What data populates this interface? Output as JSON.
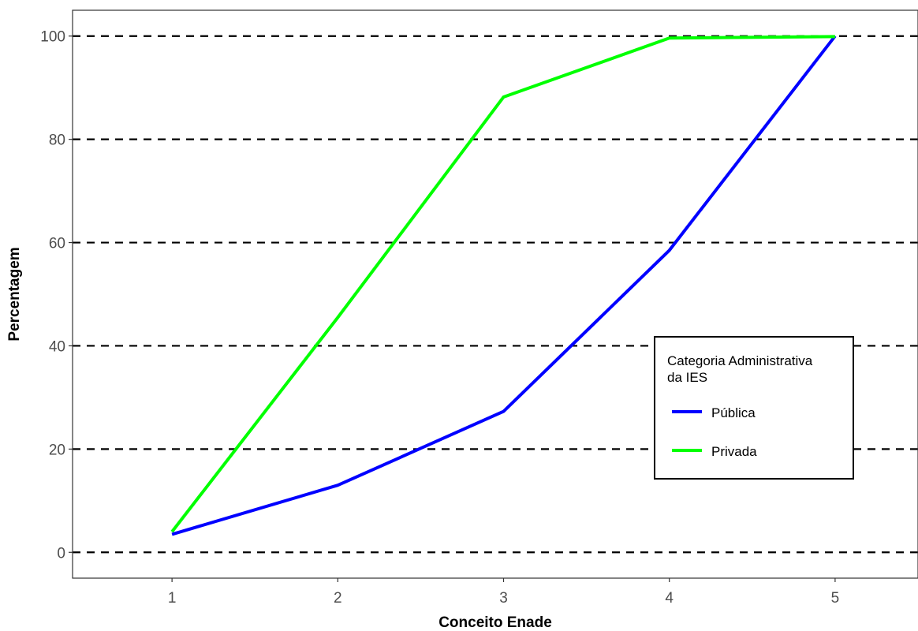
{
  "chart_data": {
    "type": "line",
    "title": "",
    "xlabel": "Conceito Enade",
    "ylabel": "Percentagem",
    "x": [
      1,
      2,
      3,
      4,
      5
    ],
    "xlim": [
      0.4,
      5.5
    ],
    "ylim": [
      -5,
      105
    ],
    "xticks": [
      1,
      2,
      3,
      4,
      5
    ],
    "yticks": [
      0,
      20,
      40,
      60,
      80,
      100
    ],
    "grid": "horizontal dashed at y ticks",
    "legend": {
      "title_line1": "Categoria Administrativa",
      "title_line2": "da IES",
      "placement": "inside right"
    },
    "series": [
      {
        "name": "Pública",
        "color": "#0000ff",
        "values": [
          3.5,
          13,
          27.3,
          58.5,
          100
        ]
      },
      {
        "name": "Privada",
        "color": "#00ff00",
        "values": [
          4,
          45.5,
          88.2,
          99.6,
          99.9
        ]
      }
    ]
  }
}
